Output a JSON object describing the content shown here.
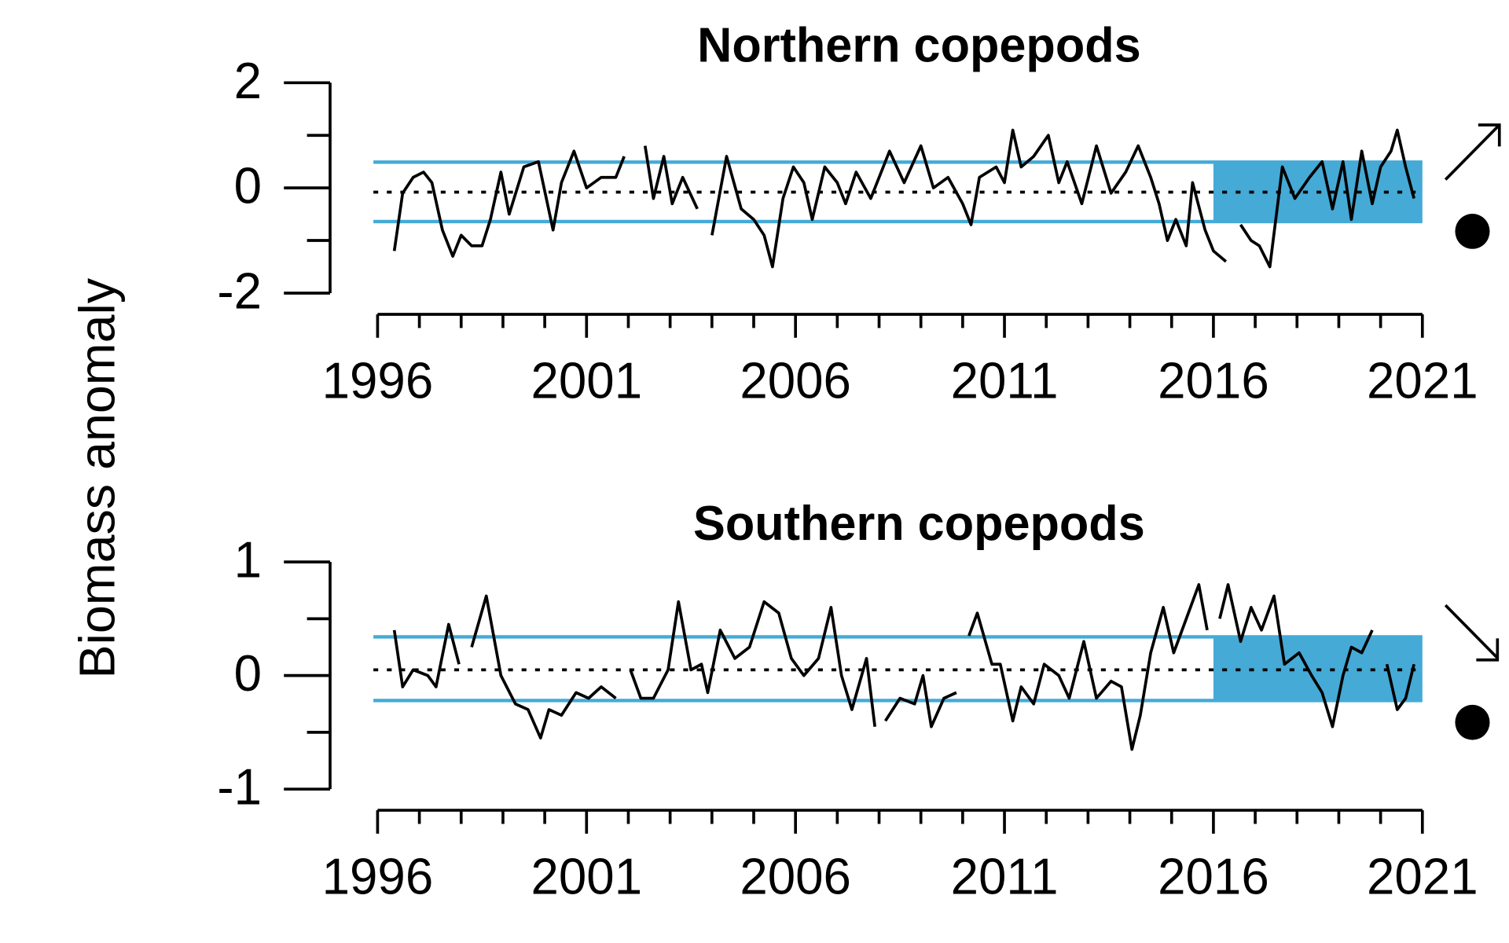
{
  "ylabel": "Biomass anomaly",
  "chart_data": [
    {
      "type": "line",
      "title": "Northern copepods",
      "x": [
        1996.4,
        1996.6,
        1996.85,
        1997.1,
        1997.3,
        1997.55,
        1997.8,
        1998.0,
        1998.25,
        1998.5,
        1998.7,
        1998.95,
        1999.15,
        1999.5,
        1999.85,
        2000.2,
        2000.4,
        2000.7,
        2001.0,
        2001.35,
        2001.7,
        2001.9,
        2002.15,
        2002.4,
        2002.6,
        2002.85,
        2003.05,
        2003.3,
        2003.65,
        2003.9,
        2004.0,
        2004.35,
        2004.7,
        2005.0,
        2005.25,
        2005.45,
        2005.7,
        2005.95,
        2006.2,
        2006.4,
        2006.7,
        2007.0,
        2007.2,
        2007.45,
        2007.8,
        2008.25,
        2008.6,
        2009.0,
        2009.3,
        2009.65,
        2010.0,
        2010.2,
        2010.4,
        2010.8,
        2011.0,
        2011.2,
        2011.4,
        2011.7,
        2012.05,
        2012.3,
        2012.5,
        2012.85,
        2013.2,
        2013.55,
        2013.9,
        2014.2,
        2014.5,
        2014.7,
        2014.9,
        2015.1,
        2015.35,
        2015.5,
        2015.8,
        2016.0,
        2016.3,
        2016.55,
        2016.65,
        2016.9,
        2017.1,
        2017.35,
        2017.65,
        2017.95,
        2018.3,
        2018.6,
        2018.85,
        2019.1,
        2019.3,
        2019.55,
        2019.8,
        2020.0,
        2020.25,
        2020.4,
        2020.6,
        2020.8
      ],
      "values": [
        -1.2,
        -0.1,
        0.2,
        0.3,
        0.1,
        -0.8,
        -1.3,
        -0.9,
        -1.1,
        -1.1,
        -0.6,
        0.3,
        -0.5,
        0.4,
        0.5,
        -0.8,
        0.1,
        0.7,
        0.0,
        0.2,
        0.2,
        0.6,
        null,
        0.8,
        -0.2,
        0.6,
        -0.3,
        0.2,
        -0.4,
        null,
        -0.9,
        0.6,
        -0.4,
        -0.6,
        -0.9,
        -1.5,
        -0.2,
        0.4,
        0.1,
        -0.6,
        0.4,
        0.1,
        -0.3,
        0.3,
        -0.2,
        0.7,
        0.1,
        0.8,
        0.0,
        0.2,
        -0.3,
        -0.7,
        0.2,
        0.4,
        0.1,
        1.1,
        0.4,
        0.6,
        1.0,
        0.1,
        0.5,
        -0.3,
        0.8,
        -0.1,
        0.3,
        0.8,
        0.2,
        -0.3,
        -1.0,
        -0.6,
        -1.1,
        0.1,
        -0.8,
        -1.2,
        -1.4,
        null,
        -0.7,
        -1.0,
        -1.1,
        -1.5,
        0.4,
        -0.2,
        0.2,
        0.5,
        -0.4,
        0.5,
        -0.6,
        0.7,
        -0.3,
        0.4,
        0.7,
        1.1,
        0.4,
        -0.2
      ],
      "color": "#000000",
      "mean": -0.08,
      "sd_band": [
        -0.64,
        0.49
      ],
      "band_color": "#45aad6",
      "shade_xlim": [
        2016,
        2021
      ],
      "xlim": [
        1995.9,
        2021
      ],
      "xticks": [
        1996,
        2001,
        2006,
        2011,
        2016,
        2021
      ],
      "x_minor_ticks": [
        1997,
        1998,
        1999,
        2000,
        2002,
        2003,
        2004,
        2005,
        2007,
        2008,
        2009,
        2010,
        2012,
        2013,
        2014,
        2015,
        2017,
        2018,
        2019,
        2020
      ],
      "ylim": [
        -2.2,
        2.2
      ],
      "yticks": [
        -2,
        0,
        2
      ],
      "y_minor_ticks": [
        -1,
        1
      ]
    },
    {
      "type": "line",
      "title": "Southern copepods",
      "x": [
        1996.4,
        1996.6,
        1996.85,
        1997.2,
        1997.4,
        1997.7,
        1997.95,
        1998.1,
        1998.25,
        1998.6,
        1998.95,
        1999.3,
        1999.6,
        1999.9,
        2000.1,
        2000.4,
        2000.75,
        2001.05,
        2001.35,
        2001.7,
        2001.9,
        2002.05,
        2002.3,
        2002.6,
        2002.95,
        2003.2,
        2003.5,
        2003.75,
        2003.9,
        2004.2,
        2004.55,
        2004.9,
        2005.25,
        2005.6,
        2005.9,
        2006.2,
        2006.55,
        2006.85,
        2007.1,
        2007.35,
        2007.7,
        2007.9,
        2008.0,
        2008.15,
        2008.5,
        2008.85,
        2009.05,
        2009.25,
        2009.55,
        2009.85,
        2010.05,
        2010.15,
        2010.35,
        2010.7,
        2010.9,
        2011.2,
        2011.4,
        2011.7,
        2011.95,
        2012.3,
        2012.55,
        2012.9,
        2013.2,
        2013.55,
        2013.8,
        2014.05,
        2014.25,
        2014.5,
        2014.8,
        2015.05,
        2015.3,
        2015.65,
        2015.85,
        2016.0,
        2016.15,
        2016.35,
        2016.65,
        2016.9,
        2017.15,
        2017.45,
        2017.7,
        2018.05,
        2018.35,
        2018.6,
        2018.85,
        2019.1,
        2019.3,
        2019.55,
        2019.8,
        2019.95,
        2020.15,
        2020.4,
        2020.6,
        2020.8
      ],
      "values": [
        0.4,
        -0.1,
        0.05,
        0.0,
        -0.1,
        0.45,
        0.1,
        null,
        0.25,
        0.7,
        0.0,
        -0.25,
        -0.3,
        -0.55,
        -0.3,
        -0.35,
        -0.15,
        -0.2,
        -0.1,
        -0.2,
        null,
        0.05,
        -0.2,
        -0.2,
        0.05,
        0.65,
        0.05,
        0.1,
        -0.15,
        0.4,
        0.15,
        0.25,
        0.65,
        0.55,
        0.15,
        0.0,
        0.15,
        0.6,
        0.0,
        -0.3,
        0.15,
        -0.45,
        null,
        -0.4,
        -0.2,
        -0.25,
        0.0,
        -0.45,
        -0.2,
        -0.15,
        null,
        0.35,
        0.55,
        0.1,
        0.1,
        -0.4,
        -0.1,
        -0.25,
        0.1,
        0.0,
        -0.2,
        0.3,
        -0.2,
        -0.05,
        -0.1,
        -0.65,
        -0.35,
        0.2,
        0.6,
        0.2,
        0.45,
        0.8,
        0.4,
        null,
        0.5,
        0.8,
        0.3,
        0.6,
        0.4,
        0.7,
        0.1,
        0.2,
        0.0,
        -0.15,
        -0.45,
        0.0,
        0.25,
        0.2,
        0.4,
        null,
        0.1,
        -0.3,
        -0.2,
        0.1
      ],
      "color": "#000000",
      "mean": 0.05,
      "sd_band": [
        -0.22,
        0.34
      ],
      "band_color": "#45aad6",
      "shade_xlim": [
        2016,
        2021
      ],
      "xlim": [
        1995.9,
        2021
      ],
      "xticks": [
        1996,
        2001,
        2006,
        2011,
        2016,
        2021
      ],
      "x_minor_ticks": [
        1997,
        1998,
        1999,
        2000,
        2002,
        2003,
        2004,
        2005,
        2007,
        2008,
        2009,
        2010,
        2012,
        2013,
        2014,
        2015,
        2017,
        2018,
        2019,
        2020
      ],
      "ylim": [
        -1.1,
        1.1
      ],
      "yticks": [
        -1,
        0,
        1
      ],
      "y_minor_ticks": [
        -0.5,
        0.5
      ]
    }
  ]
}
